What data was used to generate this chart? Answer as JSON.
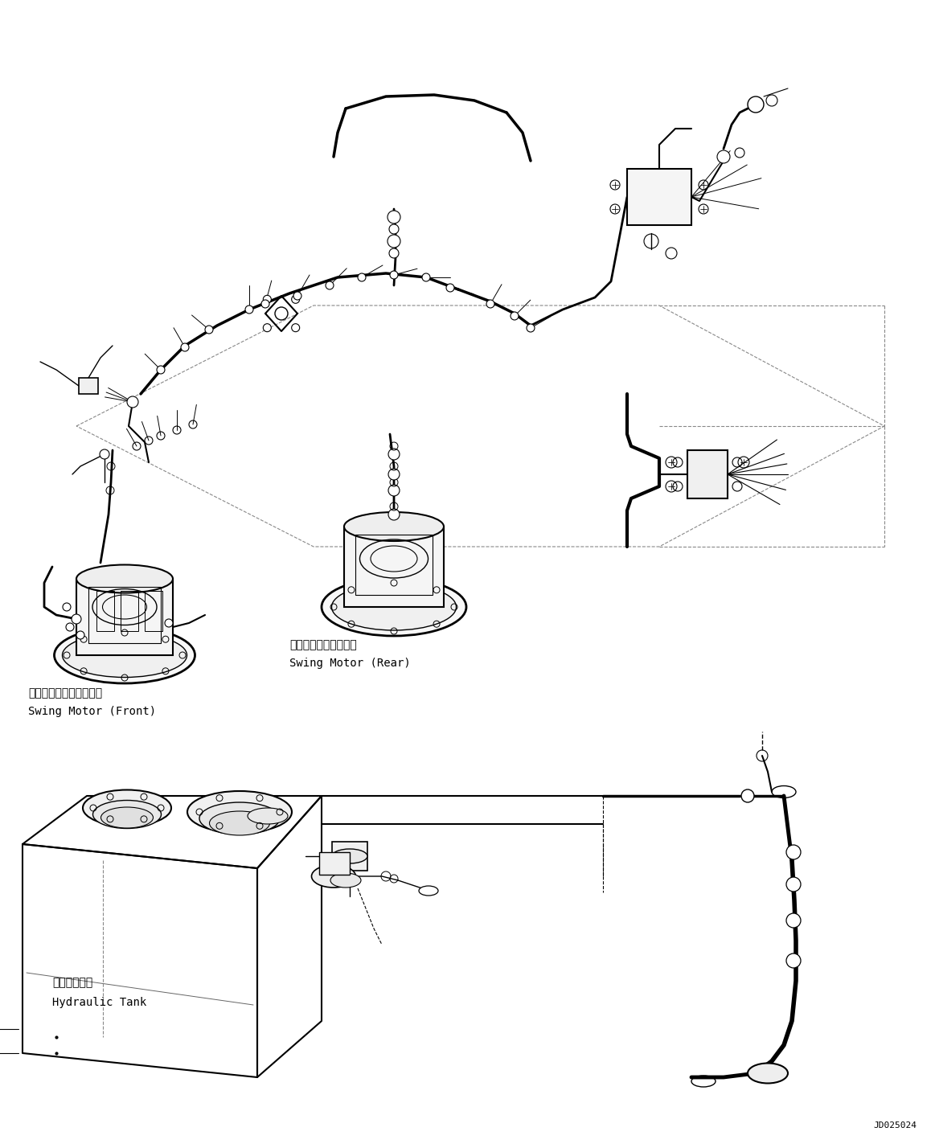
{
  "background_color": "#ffffff",
  "figure_width": 11.63,
  "figure_height": 14.28,
  "dpi": 100,
  "diagram_id": "JD025024",
  "line_color": "#000000",
  "label_swing_front_jp": "旋回モータ（フロント）",
  "label_swing_front_en": "Swing Motor (Front)",
  "label_swing_rear_jp": "旋回モータ（リヤー）",
  "label_swing_rear_en": "Swing Motor (Rear)",
  "label_tank_jp": "作動油タンク",
  "label_tank_en": "Hydraulic Tank"
}
